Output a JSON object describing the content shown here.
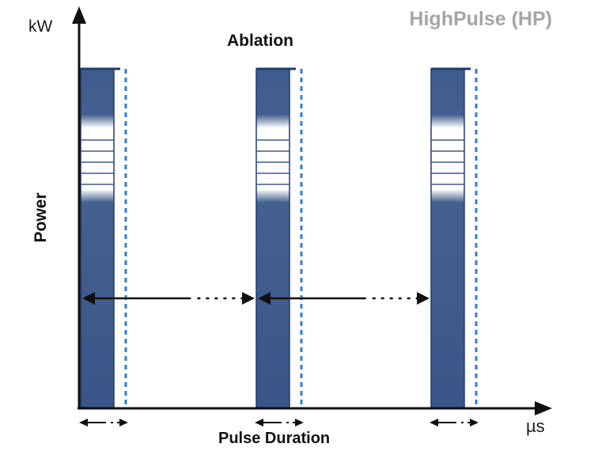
{
  "header": {
    "title": "HighPulse (HP)"
  },
  "axes": {
    "y_unit": "kW",
    "y_label": "Power",
    "x_unit": "µs",
    "x_label": "Pulse Duration"
  },
  "diagram": {
    "mode_label": "Ablation",
    "pulse_count": 3
  },
  "colors": {
    "pulse_fill": "#3d5a8c",
    "pulse_edge": "#1f3c6e",
    "dotted_line": "#2f7fcf",
    "arrow": "#111111",
    "title": "#a3a6a9"
  }
}
